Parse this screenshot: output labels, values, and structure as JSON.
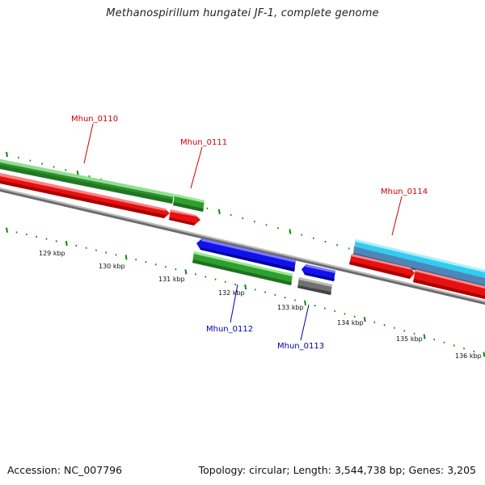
{
  "title": "Methanospirillum hungatei JF-1, complete genome",
  "footer": {
    "accession": "Accession: NC_007796",
    "topology": "Topology: circular; Length: 3,544,738 bp; Genes: 3,205"
  },
  "scale_ticks": [
    "129 kbp",
    "130 kbp",
    "131 kbp",
    "132 kbp",
    "133 kbp",
    "134 kbp",
    "135 kbp",
    "136 kbp"
  ],
  "gene_labels": [
    {
      "id": "Mhun_0110",
      "color": "#cc0000"
    },
    {
      "id": "Mhun_0111",
      "color": "#cc0000"
    },
    {
      "id": "Mhun_0114",
      "color": "#cc0000"
    },
    {
      "id": "Mhun_0112",
      "color": "#0000aa"
    },
    {
      "id": "Mhun_0113",
      "color": "#0000aa"
    }
  ],
  "colors": {
    "cds": "#ee1111",
    "gene": "#33aa33",
    "forward_feature": "#33ccee",
    "reverse_feature": "#1111ee",
    "other_feature": "#777777",
    "backbone": "#888888",
    "scale": "#118811"
  }
}
